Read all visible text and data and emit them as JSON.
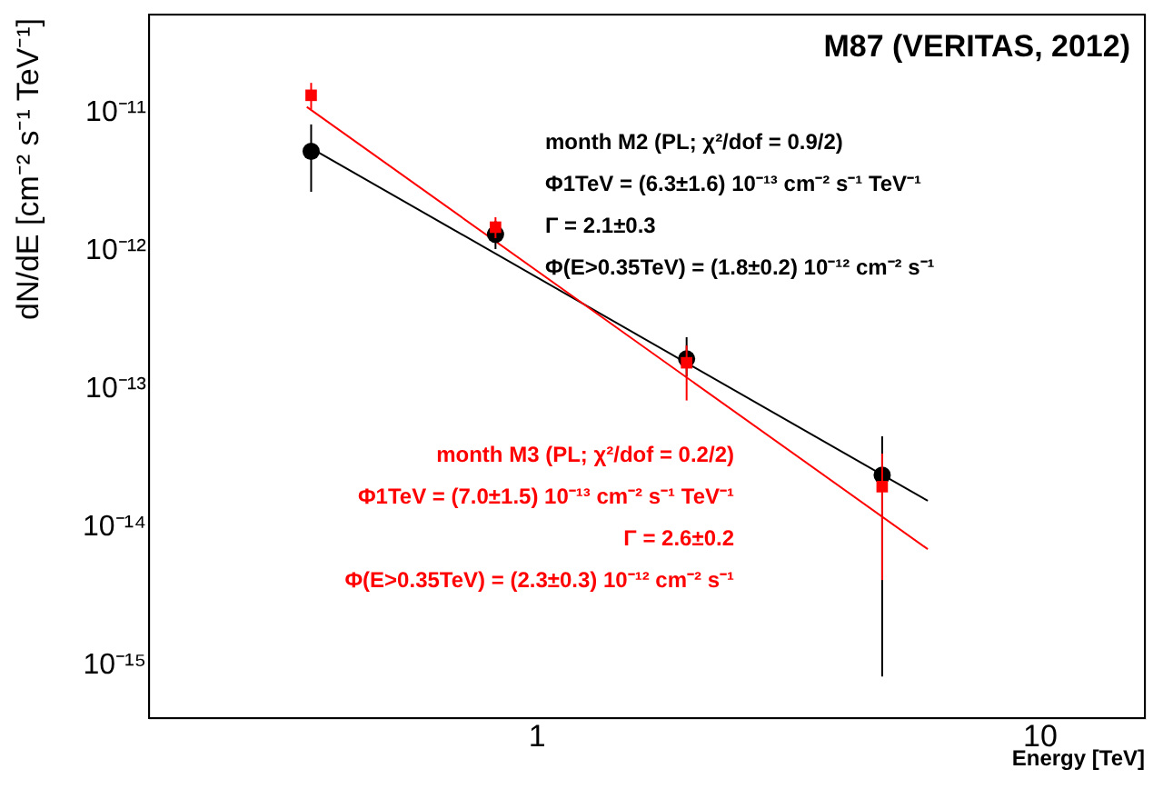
{
  "chart_data": {
    "type": "scatter",
    "title": "M87 (VERITAS, 2012)",
    "xlabel": "Energy [TeV]",
    "ylabel": "dN/dE [cm⁻² s⁻¹ TeV⁻¹]",
    "log": "xy",
    "grid": false,
    "xlim": [
      0.17,
      16.2
    ],
    "ylim": [
      4e-16,
      5e-11
    ],
    "xticks": [
      1,
      10
    ],
    "yticks": [
      {
        "value": 1e-15,
        "label": "10⁻¹⁵"
      },
      {
        "value": 1e-14,
        "label": "10⁻¹⁴"
      },
      {
        "value": 1e-13,
        "label": "10⁻¹³"
      },
      {
        "value": 1e-12,
        "label": "10⁻¹²"
      },
      {
        "value": 1e-11,
        "label": "10⁻¹¹"
      }
    ],
    "series": [
      {
        "type": "line",
        "color": "#000000",
        "x": [
          0.35,
          6.0
        ],
        "values": [
          5.6e-12,
          1.5e-14
        ],
        "marker": "none",
        "line_style": "solid"
      },
      {
        "type": "line",
        "color": "#ff0000",
        "x": [
          0.35,
          6.0
        ],
        "values": [
          1.07e-11,
          6.7e-15
        ],
        "marker": "none",
        "line_style": "solid"
      },
      {
        "color": "#000000",
        "marker": "circle",
        "x": [
          0.357,
          0.83,
          1.99,
          4.87
        ],
        "values": [
          5.1e-12,
          1.28e-12,
          1.6e-13,
          2.3e-14
        ],
        "errors": [
          [
            2.6e-12,
            8e-12
          ],
          [
            1e-12,
            1.6e-12
          ],
          [
            1.2e-13,
            2.3e-13
          ],
          [
            8e-16,
            4.4e-14
          ]
        ]
      },
      {
        "color": "#ff0000",
        "marker": "square",
        "x": [
          0.357,
          0.83,
          1.99,
          4.87
        ],
        "values": [
          1.3e-11,
          1.44e-12,
          1.5e-13,
          1.9e-14
        ],
        "errors": [
          [
            1.03e-11,
            1.6e-11
          ],
          [
            1.2e-12,
            1.7e-12
          ],
          [
            8e-14,
            2e-13
          ],
          [
            4e-15,
            3.3e-14
          ]
        ]
      }
    ],
    "annotations": [
      "month M2 (PL; χ²/dof = 0.9/2)",
      "Φ1TeV = (6.3±1.6) 10⁻¹³ cm⁻² s⁻¹ TeV⁻¹",
      "Γ = 2.1±0.3",
      "Φ(E>0.35TeV) = (1.8±0.2) 10⁻¹² cm⁻² s⁻¹",
      "month M3 (PL; χ²/dof = 0.2/2)",
      "Φ1TeV = (7.0±1.5) 10⁻¹³ cm⁻² s⁻¹ TeV⁻¹",
      "Γ = 2.6±0.2",
      "Φ(E>0.35TeV) = (2.3±0.3) 10⁻¹² cm⁻² s⁻¹"
    ]
  }
}
